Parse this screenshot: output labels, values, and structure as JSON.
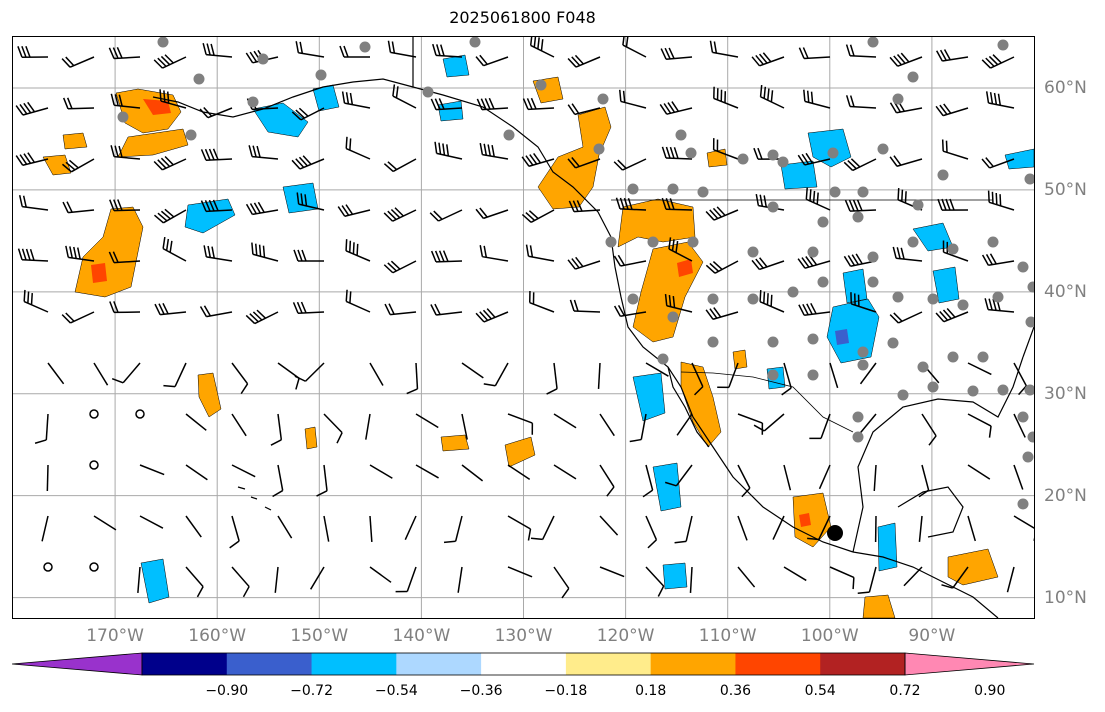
{
  "title": "2025061800 F048",
  "map": {
    "extent": {
      "lon_min": -180,
      "lon_max": -80,
      "lat_min": 8,
      "lat_max": 65
    },
    "lon_ticks": [
      {
        "value": -170,
        "label": "170°W"
      },
      {
        "value": -160,
        "label": "160°W"
      },
      {
        "value": -150,
        "label": "150°W"
      },
      {
        "value": -140,
        "label": "140°W"
      },
      {
        "value": -130,
        "label": "130°W"
      },
      {
        "value": -120,
        "label": "120°W"
      },
      {
        "value": -110,
        "label": "110°W"
      },
      {
        "value": -100,
        "label": "100°W"
      },
      {
        "value": -90,
        "label": "90°W"
      }
    ],
    "lat_ticks": [
      {
        "value": 60,
        "label": "60°N"
      },
      {
        "value": 50,
        "label": "50°N"
      },
      {
        "value": 40,
        "label": "40°N"
      },
      {
        "value": 30,
        "label": "30°N"
      },
      {
        "value": 20,
        "label": "20°N"
      },
      {
        "value": 10,
        "label": "10°N"
      }
    ],
    "gridline_color": "#a9a9a9"
  },
  "colorbar": {
    "colors": [
      "#9932cc",
      "#00008b",
      "#3a5fcd",
      "#00bfff",
      "#add8ff",
      "#ffffff",
      "#ffec8b",
      "#ffa500",
      "#ff4500",
      "#b22222",
      "#ff88b3"
    ],
    "tick_labels": [
      "−0.90",
      "−0.72",
      "−0.54",
      "−0.36",
      "−0.18",
      "0.18",
      "0.36",
      "0.54",
      "0.72",
      "0.90"
    ]
  },
  "legend_colors": {
    "positive_light": "#ffec8b",
    "positive": "#ffa500",
    "positive_strong": "#ff4500",
    "negative_light": "#add8ff",
    "negative": "#00bfff",
    "negative_strong": "#3a5fcd",
    "station_dot": "#808080"
  }
}
